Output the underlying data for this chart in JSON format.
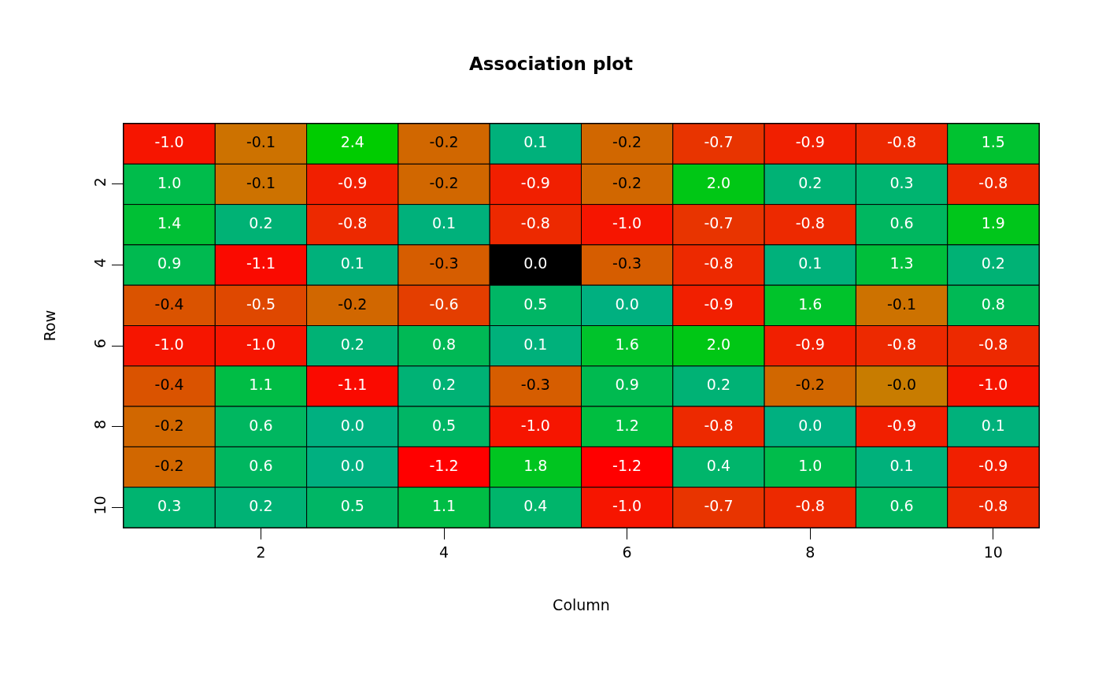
{
  "chart_data": {
    "type": "heatmap",
    "title": "Association plot",
    "xlabel": "Column",
    "ylabel": "Row",
    "categories": [
      null,
      "2",
      null,
      "4",
      null,
      "6",
      null,
      "8",
      null,
      "10"
    ],
    "y_categories": [
      null,
      "2",
      null,
      "4",
      null,
      "6",
      null,
      "8",
      null,
      "10"
    ],
    "cells": [
      [
        -1.0,
        -0.1,
        2.4,
        -0.2,
        0.1,
        -0.2,
        -0.7,
        -0.9,
        -0.8,
        1.5
      ],
      [
        1.0,
        -0.1,
        -0.9,
        -0.2,
        -0.9,
        -0.2,
        2.0,
        0.2,
        0.3,
        -0.8
      ],
      [
        1.4,
        0.2,
        -0.8,
        0.1,
        -0.8,
        -1.0,
        -0.7,
        -0.8,
        0.6,
        1.9
      ],
      [
        0.9,
        -1.1,
        0.1,
        -0.3,
        0.0,
        -0.3,
        -0.8,
        0.1,
        1.3,
        0.2
      ],
      [
        -0.4,
        -0.5,
        -0.2,
        -0.6,
        0.5,
        0.0,
        -0.9,
        1.6,
        -0.1,
        0.8
      ],
      [
        -1.0,
        -1.0,
        0.2,
        0.8,
        0.1,
        1.6,
        2.0,
        -0.9,
        -0.8,
        -0.8
      ],
      [
        -0.4,
        1.1,
        -1.1,
        0.2,
        -0.3,
        0.9,
        0.2,
        -0.2,
        -0.0,
        -1.0
      ],
      [
        -0.2,
        0.6,
        0.0,
        0.5,
        -1.0,
        1.2,
        -0.8,
        0.0,
        -0.9,
        0.1
      ],
      [
        -0.2,
        0.6,
        0.0,
        -1.2,
        1.8,
        -1.2,
        0.4,
        1.0,
        0.1,
        -0.9
      ],
      [
        0.3,
        0.2,
        0.5,
        1.1,
        0.4,
        -1.0,
        -0.7,
        -0.8,
        0.6,
        -0.8
      ]
    ],
    "colors": [
      [
        null,
        null,
        null,
        null,
        null,
        null,
        null,
        null,
        null,
        null
      ],
      [
        null,
        null,
        null,
        null,
        null,
        null,
        null,
        null,
        null,
        null
      ],
      [
        null,
        null,
        null,
        null,
        null,
        null,
        null,
        null,
        null,
        null
      ],
      [
        null,
        null,
        null,
        null,
        "#000000",
        null,
        null,
        null,
        null,
        null
      ],
      [
        null,
        null,
        null,
        null,
        null,
        null,
        null,
        null,
        null,
        null
      ],
      [
        null,
        null,
        null,
        null,
        null,
        null,
        null,
        null,
        null,
        null
      ],
      [
        null,
        null,
        null,
        null,
        null,
        null,
        null,
        null,
        null,
        null
      ],
      [
        null,
        null,
        null,
        null,
        null,
        null,
        null,
        null,
        null,
        null
      ],
      [
        null,
        null,
        null,
        null,
        null,
        null,
        null,
        null,
        null,
        null
      ],
      [
        null,
        null,
        null,
        null,
        null,
        null,
        null,
        null,
        null,
        null
      ]
    ],
    "cell_labels": [
      [
        "-1.0",
        "-0.1",
        "2.4",
        "-0.2",
        "0.1",
        "-0.2",
        "-0.7",
        "-0.9",
        "-0.8",
        "1.5"
      ],
      [
        "1.0",
        "-0.1",
        "-0.9",
        "-0.2",
        "-0.9",
        "-0.2",
        "2.0",
        "0.2",
        "0.3",
        "-0.8"
      ],
      [
        "1.4",
        "0.2",
        "-0.8",
        "0.1",
        "-0.8",
        "-1.0",
        "-0.7",
        "-0.8",
        "0.6",
        "1.9"
      ],
      [
        "0.9",
        "-1.1",
        "0.1",
        "-0.3",
        "0.0",
        "-0.3",
        "-0.8",
        "0.1",
        "1.3",
        "0.2"
      ],
      [
        "-0.4",
        "-0.5",
        "-0.2",
        "-0.6",
        "0.5",
        "0.0",
        "-0.9",
        "1.6",
        "-0.1",
        "0.8"
      ],
      [
        "-1.0",
        "-1.0",
        "0.2",
        "0.8",
        "0.1",
        "1.6",
        "2.0",
        "-0.9",
        "-0.8",
        "-0.8"
      ],
      [
        "-0.4",
        "1.1",
        "-1.1",
        "0.2",
        "-0.3",
        "0.9",
        "0.2",
        "-0.2",
        "-0.0",
        "-1.0"
      ],
      [
        "-0.2",
        "0.6",
        "0.0",
        "0.5",
        "-1.0",
        "1.2",
        "-0.8",
        "0.0",
        "-0.9",
        "0.1"
      ],
      [
        "-0.2",
        "0.6",
        "0.0",
        "-1.2",
        "1.8",
        "-1.2",
        "0.4",
        "1.0",
        "0.1",
        "-0.9"
      ],
      [
        "0.3",
        "0.2",
        "0.5",
        "1.1",
        "0.4",
        "-1.0",
        "-0.7",
        "-0.8",
        "0.6",
        "-0.8"
      ]
    ],
    "grid": false
  }
}
